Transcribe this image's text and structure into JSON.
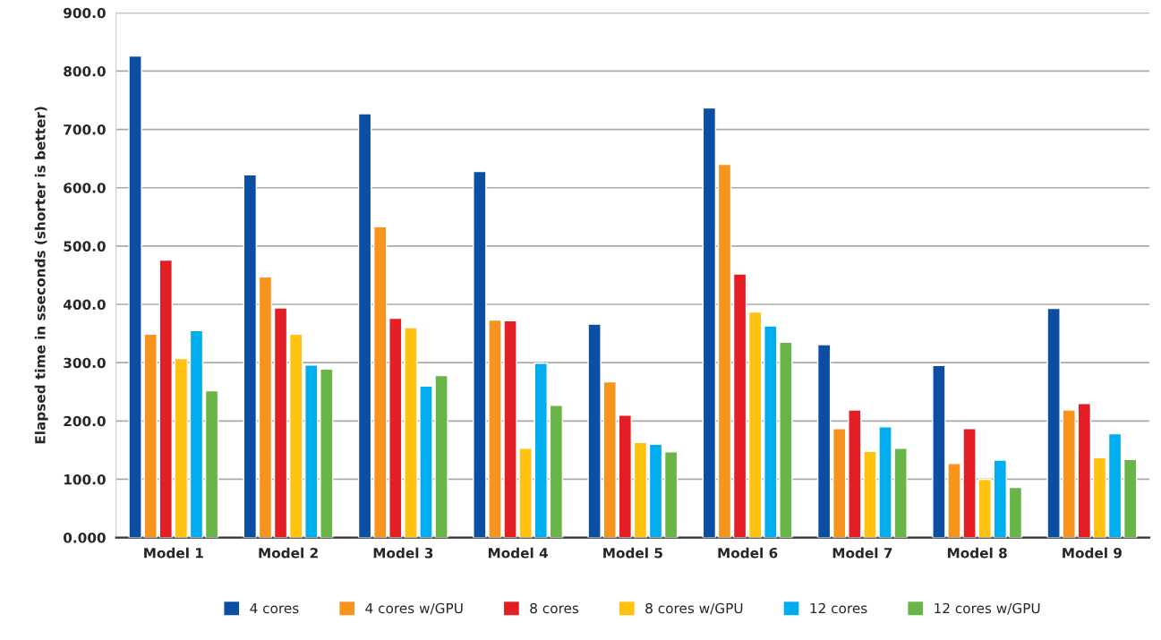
{
  "chart_data": {
    "type": "bar",
    "ylabel": "Elapsed time in sseconds (shorter is better)",
    "categories": [
      "Model 1",
      "Model 2",
      "Model 3",
      "Model 4",
      "Model 5",
      "Model 6",
      "Model 7",
      "Model 8",
      "Model 9"
    ],
    "series": [
      {
        "name": "4 cores",
        "color": "#0b4ea2",
        "values": [
          826,
          622,
          727,
          628,
          366,
          737,
          331,
          295,
          393
        ]
      },
      {
        "name": "4 cores w/GPU",
        "color": "#f7941d",
        "values": [
          349,
          447,
          533,
          373,
          267,
          640,
          187,
          127,
          219
        ]
      },
      {
        "name": "8 cores",
        "color": "#e31e24",
        "values": [
          476,
          394,
          376,
          372,
          210,
          452,
          219,
          187,
          230
        ]
      },
      {
        "name": "8 cores w/GPU",
        "color": "#ffc20e",
        "values": [
          307,
          349,
          360,
          153,
          163,
          387,
          148,
          100,
          137
        ]
      },
      {
        "name": "12 cores",
        "color": "#00aeef",
        "values": [
          355,
          296,
          260,
          299,
          160,
          363,
          190,
          133,
          178
        ]
      },
      {
        "name": "12 cores w/GPU",
        "color": "#6ab547",
        "values": [
          252,
          289,
          278,
          227,
          147,
          335,
          153,
          86,
          134
        ]
      }
    ],
    "ylim": [
      0,
      900
    ],
    "yticks": [
      {
        "value": 0,
        "label": "0.000"
      },
      {
        "value": 100,
        "label": "100.0"
      },
      {
        "value": 200,
        "label": "200.0"
      },
      {
        "value": 300,
        "label": "300.0"
      },
      {
        "value": 400,
        "label": "400.0"
      },
      {
        "value": 500,
        "label": "500.0"
      },
      {
        "value": 600,
        "label": "600.0"
      },
      {
        "value": 700,
        "label": "700.0"
      },
      {
        "value": 800,
        "label": "800.0"
      },
      {
        "value": 900,
        "label": "900.0"
      }
    ],
    "grid": "y",
    "legend": "bottom"
  }
}
